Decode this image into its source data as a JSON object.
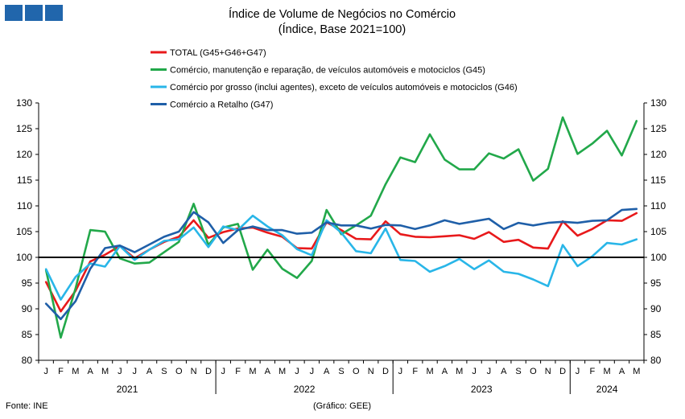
{
  "title": "Índice de Volume de Negócios no Comércio",
  "subtitle": "(Índice, Base 2021=100)",
  "source": "Fonte: INE",
  "credit": "(Gráfico: GEE)",
  "chart_data": {
    "type": "line",
    "ylim": [
      80,
      130
    ],
    "yticks": [
      80,
      85,
      90,
      95,
      100,
      105,
      110,
      115,
      120,
      125,
      130
    ],
    "reference_line": 100,
    "legend_position": "top",
    "grid": false,
    "x": [
      "J",
      "F",
      "M",
      "A",
      "M",
      "J",
      "J",
      "A",
      "S",
      "O",
      "N",
      "D",
      "J",
      "F",
      "M",
      "A",
      "M",
      "J",
      "J",
      "A",
      "S",
      "O",
      "N",
      "D",
      "J",
      "F",
      "M",
      "A",
      "M",
      "J",
      "J",
      "A",
      "S",
      "O",
      "N",
      "D",
      "J",
      "F",
      "M",
      "A",
      "M"
    ],
    "years": [
      {
        "label": "2021",
        "start": 0,
        "count": 12
      },
      {
        "label": "2022",
        "start": 12,
        "count": 12
      },
      {
        "label": "2023",
        "start": 24,
        "count": 12
      },
      {
        "label": "2024",
        "start": 36,
        "count": 5
      }
    ],
    "series": [
      {
        "name": "TOTAL (G45+G46+G47)",
        "color": "#e8191b",
        "values": [
          95.2,
          89.5,
          93.5,
          99.2,
          100.5,
          102.2,
          99.8,
          101.5,
          103.0,
          104.0,
          107.2,
          103.8,
          104.9,
          105.6,
          105.8,
          104.8,
          104.0,
          101.8,
          101.7,
          106.8,
          105.3,
          103.6,
          103.5,
          107.0,
          104.5,
          104.0,
          103.9,
          104.1,
          104.3,
          103.6,
          104.9,
          103.0,
          103.4,
          101.9,
          101.7,
          107.0,
          104.2,
          105.5,
          107.2,
          107.1,
          108.6
        ]
      },
      {
        "name": "Comércio, manutenção e reparação, de veículos automóveis e motociclos (G45)",
        "color": "#22a84a",
        "values": [
          97.5,
          84.4,
          94.0,
          105.3,
          105.0,
          99.8,
          98.8,
          99.0,
          101.0,
          103.0,
          110.4,
          102.4,
          105.8,
          106.5,
          97.6,
          101.5,
          97.8,
          96.0,
          99.3,
          109.2,
          104.5,
          106.2,
          108.1,
          114.2,
          119.4,
          118.5,
          123.9,
          119.0,
          117.1,
          117.1,
          120.2,
          119.2,
          121.0,
          114.9,
          117.2,
          127.2,
          120.1,
          122.1,
          124.6,
          119.8,
          126.5
        ]
      },
      {
        "name": "Comércio por grosso (inclui agentes), exceto de veículos automóveis e motociclos (G46)",
        "color": "#29b6e8",
        "values": [
          97.7,
          91.8,
          96.2,
          98.8,
          98.2,
          102.2,
          99.5,
          101.5,
          103.2,
          103.5,
          105.8,
          102.0,
          106.0,
          105.3,
          108.1,
          106.0,
          104.3,
          101.6,
          100.4,
          107.2,
          104.8,
          101.2,
          100.8,
          105.6,
          99.5,
          99.3,
          97.2,
          98.3,
          99.7,
          97.7,
          99.4,
          97.2,
          96.8,
          95.7,
          94.4,
          102.4,
          98.3,
          100.2,
          102.8,
          102.5,
          103.5
        ]
      },
      {
        "name": "Comércio a Retalho (G47)",
        "color": "#1f5fa8",
        "values": [
          91.0,
          88.0,
          91.5,
          97.8,
          101.8,
          102.3,
          101.0,
          102.5,
          104.0,
          105.0,
          108.8,
          106.8,
          102.8,
          105.3,
          106.0,
          105.3,
          105.3,
          104.6,
          104.8,
          106.8,
          106.2,
          106.2,
          105.6,
          106.3,
          106.2,
          105.5,
          106.2,
          107.2,
          106.5,
          107.0,
          107.5,
          105.5,
          106.7,
          106.2,
          106.7,
          106.9,
          106.7,
          107.1,
          107.2,
          109.2,
          109.4
        ]
      }
    ]
  }
}
